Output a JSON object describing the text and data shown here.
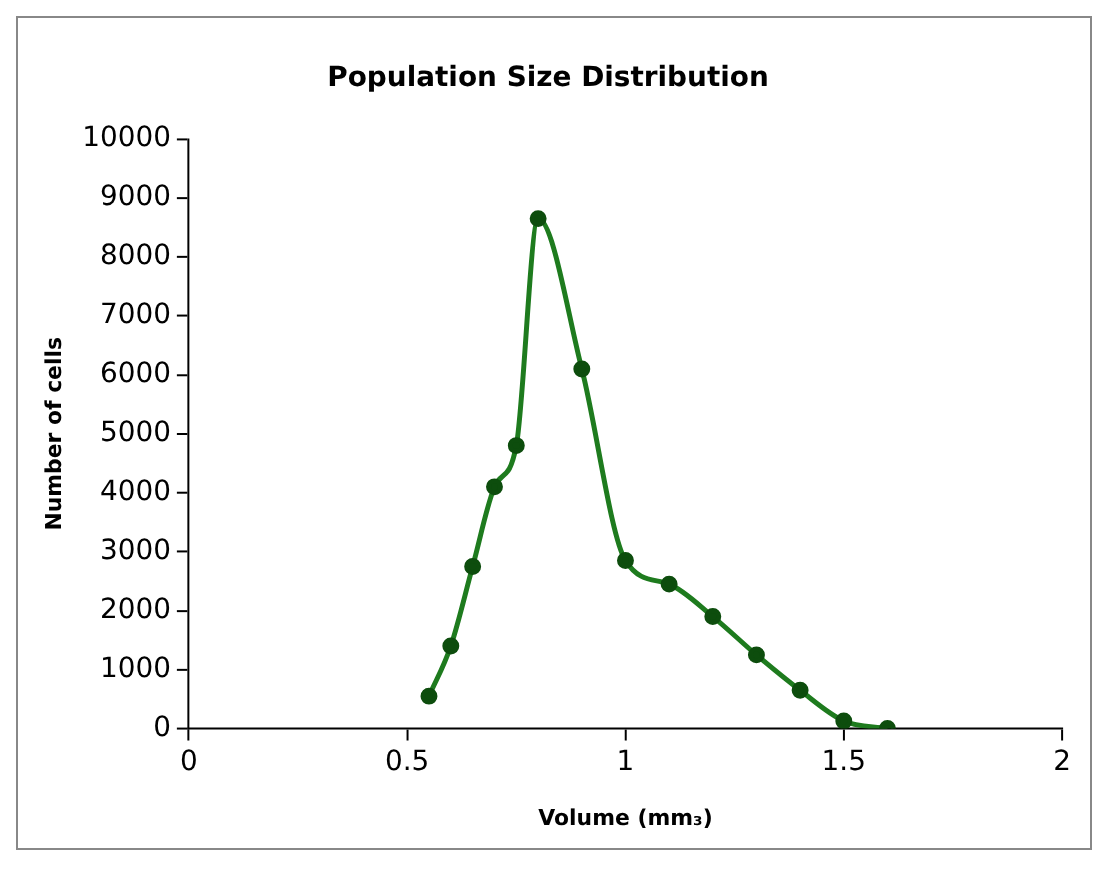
{
  "chart_data": {
    "type": "line",
    "title": "Population Size Distribution",
    "xlabel": "Volume (mm₃)",
    "ylabel": "Number of cells",
    "x": [
      0.55,
      0.6,
      0.65,
      0.7,
      0.75,
      0.8,
      0.9,
      1.0,
      1.1,
      1.2,
      1.3,
      1.4,
      1.5,
      1.6
    ],
    "series": [
      {
        "color": "#1e7b1e",
        "values": [
          550,
          1400,
          2750,
          4100,
          4800,
          8650,
          6100,
          2850,
          2450,
          1900,
          1250,
          650,
          130,
          0
        ]
      }
    ],
    "xlim": [
      0,
      2
    ],
    "xticks": [
      0,
      0.5,
      1,
      1.5,
      2
    ],
    "ylim": [
      0,
      10000
    ],
    "yticks": [
      0,
      1000,
      2000,
      3000,
      4000,
      5000,
      6000,
      7000,
      8000,
      9000,
      10000
    ],
    "grid": false,
    "legend": false,
    "marker": "circle",
    "line_style": "solid"
  }
}
